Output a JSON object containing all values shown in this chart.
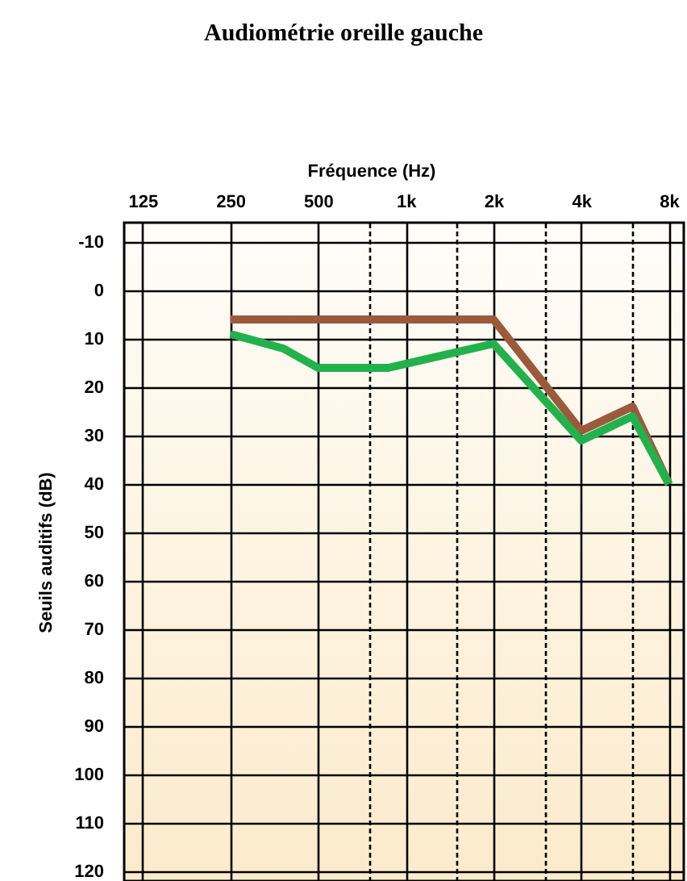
{
  "chart_data": {
    "type": "line",
    "title": "Audiométrie oreille gauche",
    "xlabel": "Fréquence (Hz)",
    "ylabel": "Seuils auditifs (dB)",
    "log": "x",
    "xlim": [
      108,
      9000
    ],
    "xticks": [
      125,
      250,
      500,
      {
        "value": 750,
        "label": null
      },
      {
        "value": 1000,
        "label": "1k"
      },
      {
        "value": 1500,
        "label": null
      },
      {
        "value": 2000,
        "label": "2k"
      },
      {
        "value": 3000,
        "label": null
      },
      {
        "value": 4000,
        "label": "4k"
      },
      {
        "value": 6000,
        "label": null
      },
      {
        "value": 8000,
        "label": "8k"
      }
    ],
    "ylim": [
      122,
      -14
    ],
    "yticks": [
      -10,
      0,
      10,
      20,
      30,
      40,
      50,
      60,
      70,
      80,
      90,
      100,
      110,
      120
    ],
    "grid": true,
    "series": [
      {
        "color": "#9c5a3c",
        "x": [
          250,
          2000,
          4000,
          6000,
          8000
        ],
        "values": [
          6,
          6,
          29,
          24,
          40
        ]
      },
      {
        "color": "#22b14c",
        "x": [
          250,
          380,
          500,
          870,
          2000,
          4000,
          6000,
          8000
        ],
        "values": [
          9,
          12,
          16,
          16,
          11,
          31,
          26,
          40
        ]
      }
    ]
  }
}
